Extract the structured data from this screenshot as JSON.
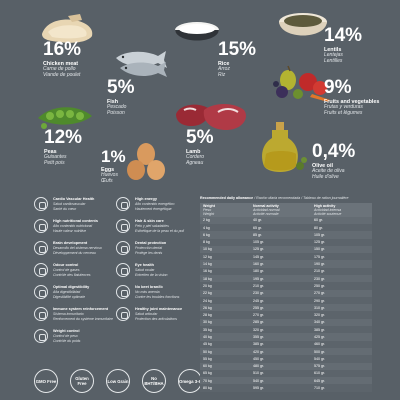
{
  "ingredients": [
    {
      "id": "chicken",
      "percent": "16%",
      "name": "Chicken meat",
      "tr1": "Carne de pollo",
      "tr2": "Viande de poulet"
    },
    {
      "id": "fish",
      "percent": "5%",
      "name": "Fish",
      "tr1": "Pescado",
      "tr2": "Poisson"
    },
    {
      "id": "rice",
      "percent": "15%",
      "name": "Rice",
      "tr1": "Arroz",
      "tr2": "Riz"
    },
    {
      "id": "lentils",
      "percent": "14%",
      "name": "Lentils",
      "tr1": "Lentejas",
      "tr2": "Lentilles"
    },
    {
      "id": "fruits",
      "percent": "9%",
      "name": "Fruits and vegetables",
      "tr1": "Frutas y verduras",
      "tr2": "Fruits et légumes"
    },
    {
      "id": "peas",
      "percent": "12%",
      "name": "Peas",
      "tr1": "Guisantes",
      "tr2": "Petit pois"
    },
    {
      "id": "lamb",
      "percent": "5%",
      "name": "Lamb",
      "tr1": "Cordero",
      "tr2": "Agneau"
    },
    {
      "id": "eggs",
      "percent": "1%",
      "name": "Eggs",
      "tr1": "Huevos",
      "tr2": "Œufs"
    },
    {
      "id": "olive",
      "percent": "0,4%",
      "name": "Olive oil",
      "tr1": "Aceite de oliva",
      "tr2": "Huile d'olive"
    }
  ],
  "benefits": [
    {
      "name": "Cardio Vascular Health",
      "tr1": "Salud cardiovascular",
      "tr2": "Santé du cœur",
      "icon": "heart-icon"
    },
    {
      "name": "High energy",
      "tr1": "Alto contenido energético",
      "tr2": "Hautement énergétique",
      "icon": "energy-icon"
    },
    {
      "name": "High nutritional contents",
      "tr1": "Alto contenido nutricional",
      "tr2": "Haute valeur nutritive",
      "icon": "apple-icon"
    },
    {
      "name": "Hair & skin care",
      "tr1": "Pelo y piel saludables",
      "tr2": "Esthétique de la peau et du poil",
      "icon": "dog-icon"
    },
    {
      "name": "Brain development",
      "tr1": "Desarrollo del sistema nervioso",
      "tr2": "Développement du cerveau",
      "icon": "brain-icon"
    },
    {
      "name": "Dental protection",
      "tr1": "Protección dental",
      "tr2": "Protège les dents",
      "icon": "tooth-icon"
    },
    {
      "name": "Odour control",
      "tr1": "Control de gases",
      "tr2": "Contrôle des flatulences",
      "icon": "nose-icon"
    },
    {
      "name": "Eye health",
      "tr1": "Salud ocular",
      "tr2": "Entretien de la vision",
      "icon": "eye-icon"
    },
    {
      "name": "Optimal digestibility",
      "tr1": "Alta digestibilidad",
      "tr2": "Digestibilité optimale",
      "icon": "stomach-icon"
    },
    {
      "name": "No beet bran/ib",
      "tr1": "No más anemia",
      "tr2": "Contre les troubles fonctions",
      "icon": "beet-icon"
    },
    {
      "name": "Immune system reinforcement",
      "tr1": "Sistema inmunitario",
      "tr2": "Renforcement du système immunitaire",
      "icon": "shield-icon"
    },
    {
      "name": "Healthy joint maintenance",
      "tr1": "Salud articular",
      "tr2": "Protection des articulations",
      "icon": "bone-icon"
    },
    {
      "name": "Weight control",
      "tr1": "Control de peso",
      "tr2": "Contrôle du poids",
      "icon": "scale-icon"
    }
  ],
  "badges": [
    "GMO Free",
    "Gluten Free",
    "Low Grain",
    "No BHT/BHA",
    "Omega 3-6"
  ],
  "feeding": {
    "title": "Recommended daily allowance",
    "title_tr": "/ Ración diaria recomendada / Tableau de ration journalière",
    "col_weight": "Weight",
    "col_weight_tr1": "Peso",
    "col_weight_tr2": "Weight",
    "col_normal": "Normal activity",
    "col_normal_tr1": "Actividad normal",
    "col_normal_tr2": "Activité normale",
    "col_high": "High activity",
    "col_high_tr1": "Actividad intensa",
    "col_high_tr2": "Activité soutenue",
    "rows": [
      [
        "2 kg",
        "40 gr.",
        "60 gr."
      ],
      [
        "4 kg",
        "65 gr.",
        "80 gr."
      ],
      [
        "6 kg",
        "85 gr.",
        "105 gr."
      ],
      [
        "8 kg",
        "105 gr.",
        "125 gr."
      ],
      [
        "10 kg",
        "125 gr.",
        "150 gr."
      ],
      [
        "12 kg",
        "145 gr.",
        "175 gr."
      ],
      [
        "14 kg",
        "160 gr.",
        "190 gr."
      ],
      [
        "16 kg",
        "180 gr.",
        "210 gr."
      ],
      [
        "18 kg",
        "195 gr.",
        "230 gr."
      ],
      [
        "20 kg",
        "210 gr.",
        "250 gr."
      ],
      [
        "22 kg",
        "230 gr.",
        "270 gr."
      ],
      [
        "24 kg",
        "245 gr.",
        "290 gr."
      ],
      [
        "26 kg",
        "255 gr.",
        "310 gr."
      ],
      [
        "28 kg",
        "270 gr.",
        "320 gr."
      ],
      [
        "30 kg",
        "285 gr.",
        "340 gr."
      ],
      [
        "35 kg",
        "320 gr.",
        "385 gr."
      ],
      [
        "40 kg",
        "355 gr.",
        "425 gr."
      ],
      [
        "45 kg",
        "385 gr.",
        "460 gr."
      ],
      [
        "50 kg",
        "420 gr.",
        "500 gr."
      ],
      [
        "55 kg",
        "450 gr.",
        "540 gr."
      ],
      [
        "60 kg",
        "480 gr.",
        "575 gr."
      ],
      [
        "65 kg",
        "510 gr.",
        "610 gr."
      ],
      [
        "70 kg",
        "540 gr.",
        "645 gr."
      ],
      [
        "80 kg",
        "595 gr.",
        "710 gr."
      ]
    ]
  }
}
